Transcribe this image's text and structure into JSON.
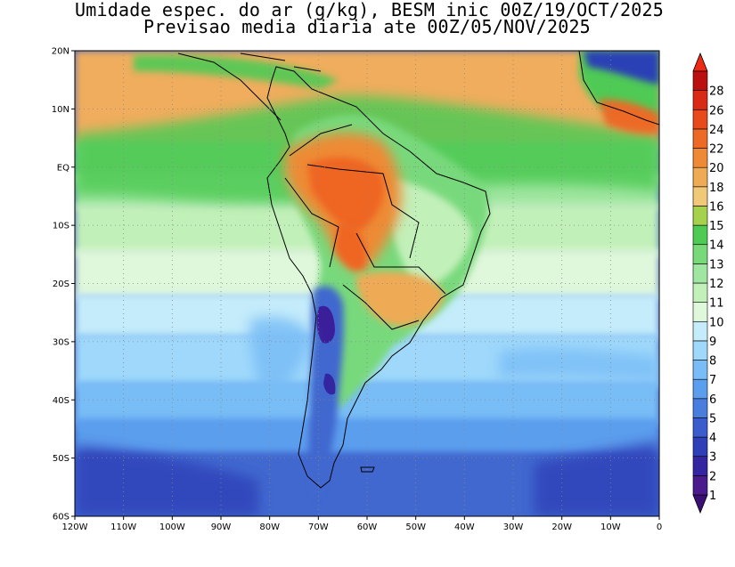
{
  "title": {
    "line1": "Umidade espec. do ar (g/kg), BESM inic 00Z/19/OCT/2025",
    "line2": "Previsao media diaria ate 00Z/05/NOV/2025"
  },
  "map": {
    "lon_range": [
      -120,
      0
    ],
    "lat_range": [
      -60,
      20
    ],
    "grid": "dotted",
    "lat_ticks": [
      {
        "value": 20,
        "label": "20N"
      },
      {
        "value": 10,
        "label": "10N"
      },
      {
        "value": 0,
        "label": "EQ"
      },
      {
        "value": -10,
        "label": "10S"
      },
      {
        "value": -20,
        "label": "20S"
      },
      {
        "value": -30,
        "label": "30S"
      },
      {
        "value": -40,
        "label": "40S"
      },
      {
        "value": -50,
        "label": "50S"
      },
      {
        "value": -60,
        "label": "60S"
      }
    ],
    "lon_ticks": [
      {
        "value": -120,
        "label": "120W"
      },
      {
        "value": -110,
        "label": "110W"
      },
      {
        "value": -100,
        "label": "100W"
      },
      {
        "value": -90,
        "label": "90W"
      },
      {
        "value": -80,
        "label": "80W"
      },
      {
        "value": -70,
        "label": "70W"
      },
      {
        "value": -60,
        "label": "60W"
      },
      {
        "value": -50,
        "label": "50W"
      },
      {
        "value": -40,
        "label": "40W"
      },
      {
        "value": -30,
        "label": "30W"
      },
      {
        "value": -20,
        "label": "20W"
      },
      {
        "value": -10,
        "label": "10W"
      },
      {
        "value": 0,
        "label": "0"
      }
    ]
  },
  "colorbar": {
    "levels": [
      "1",
      "2",
      "3",
      "4",
      "5",
      "6",
      "7",
      "8",
      "9",
      "10",
      "11",
      "12",
      "13",
      "14",
      "15",
      "16",
      "18",
      "20",
      "22",
      "24",
      "26",
      "28"
    ],
    "colors": [
      "#4b1a8c",
      "#3326a0",
      "#2f3fb8",
      "#3a5ccc",
      "#4a7ede",
      "#5c9eee",
      "#79bdf6",
      "#9fd8fb",
      "#c4ecfa",
      "#dff7da",
      "#c2f0b9",
      "#9fe6a0",
      "#78d97b",
      "#4fca55",
      "#a6d14c",
      "#f0c877",
      "#eeaa55",
      "#ee8a36",
      "#ec6a26",
      "#e84a1c",
      "#d92a16",
      "#bb1010"
    ],
    "arrow_low_color": "#3b0f75",
    "arrow_high_color": "#ee2a14"
  },
  "fields": {
    "tropical_belt_color": "#efad5d",
    "amazon_core_color": "#ef6522",
    "ocean_south_color": "#3f67cf",
    "andes_dry_color": "#3b1f9a",
    "sahel_dry_color": "#2c3fb5"
  }
}
